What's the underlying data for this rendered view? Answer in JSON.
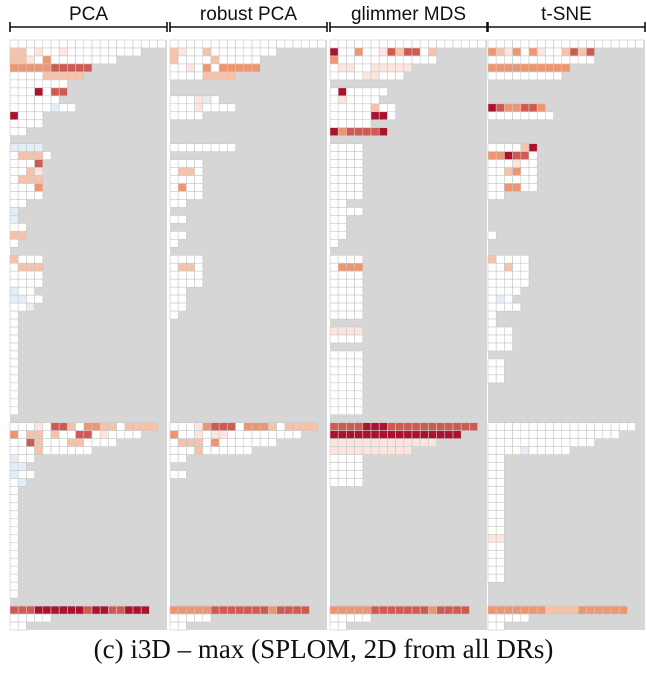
{
  "caption": "(c)  i3D – max (SPLOM, 2D from all DRs)",
  "chart_data": {
    "type": "heatmap",
    "title": "",
    "encoding": "diverging (blue = low, white = neutral, red = high); grey = no cell",
    "colors": {
      "background": "#d6d6d6",
      "neg2": "#c6dcef",
      "neg1": "#e4eef8",
      "zero": "#ffffff",
      "pos1": "#fbe5dc",
      "pos2": "#f6c3aa",
      "pos3": "#f0966e",
      "pos4": "#d05a52",
      "pos5": "#aa1230",
      "grid": "#c9c9c9"
    },
    "panels": [
      {
        "label": "PCA",
        "rows": [
          "0000000000000000000",
          "2201001000000000",
          "2210300000000",
          "3333344444",
          "000022222",
          "0000000",
          "0005044",
          "000000",
          "00000-100",
          "5000",
          "0000",
          "00",
          "",
          "-1-1-1-1",
          "02220",
          "0004",
          "0021",
          "0222",
          "0003",
          "0000",
          "00",
          "-1",
          "-1",
          "00",
          "22",
          "0",
          "",
          "2000",
          "0222",
          "0000",
          "0000",
          "-100",
          "-1-100",
          "00-1",
          "0",
          "0",
          "0",
          "0",
          "0",
          "0",
          "0",
          "0",
          "0",
          "0",
          "0",
          "0",
          "0",
          "",
          "000104420332202222",
          "3022020044010000",
          "0042000220000",
          "0002000000",
          "-100",
          "-1-1",
          "-100",
          "0-1",
          "0",
          "0",
          "0",
          "0",
          "0",
          "0",
          "0",
          "0",
          "0",
          "0",
          "0",
          "0",
          "0",
          "0",
          "",
          "44455555545544555",
          "00000",
          "00"
        ]
      },
      {
        "label": "robust PCA",
        "rows": [
          "0000000000000000000",
          "2100200000000",
          "20000200000",
          "00103033333",
          "00002222",
          "",
          "",
          "0001-10",
          "00010000",
          "0000",
          "",
          "",
          "",
          "00000000",
          "",
          "0000",
          "0220",
          "0000",
          "0300",
          "0000",
          "00",
          "",
          "00",
          "",
          "00",
          "0",
          "",
          "0000",
          "0220",
          "0000",
          "0000",
          "00",
          "00",
          "00",
          "0",
          "",
          "",
          "",
          "",
          "",
          "",
          "",
          "",
          "",
          "",
          "",
          "",
          "",
          "000134440333202222",
          "3001011000000000",
          "0222030000000",
          "0002000000",
          "00",
          "",
          "00",
          "",
          "",
          "",
          "",
          "",
          "",
          "",
          "",
          "",
          "",
          "",
          "",
          "",
          "",
          "",
          "",
          "33333444444434444",
          "00000",
          "00"
        ]
      },
      {
        "label": "glimmer MDS",
        "rows": [
          "0000000000000000000",
          "5003001424402",
          "3000000000000",
          "0110011111",
          "000011000",
          "",
          "0500000",
          "010000",
          "00000200",
          "00000550",
          "00000",
          "5344445",
          "",
          "0000",
          "0000",
          "0000",
          "0000",
          "0000",
          "0000",
          "0000",
          "00",
          "0000",
          "00",
          "00",
          "00",
          "0",
          "",
          "0000",
          "0333",
          "0000",
          "0000",
          "0000",
          "0000",
          "0000",
          "0000",
          "",
          "1111",
          "0000",
          "",
          "0000",
          "0000",
          "0000",
          "0000",
          "0000",
          "0000",
          "0000",
          "0000",
          "",
          "444455544444444444",
          "5555555555555555",
          "1111111111111",
          "1111111111",
          "0000",
          "0000",
          "0000",
          "0000",
          "",
          "",
          "",
          "",
          "",
          "",
          "",
          "",
          "",
          "",
          "",
          "",
          "",
          "",
          "",
          "33333444444434444",
          "00000",
          "00"
        ]
      },
      {
        "label": "t-SNE",
        "rows": [
          "0000000000000000000",
          "3213031002424",
          "0000000000000",
          "3333333333",
          "000000000",
          "",
          "",
          "",
          "5433443",
          "00000000",
          "",
          "",
          "",
          "000025",
          "335440",
          "000100",
          "002300",
          "000000",
          "003300",
          "00",
          "",
          "",
          "",
          "",
          "0",
          "",
          "",
          "20000",
          "00200",
          "00000",
          "00000",
          "0000",
          "0-10",
          "0000",
          "0",
          "0",
          "000",
          "000",
          "000",
          "",
          "00",
          "00",
          "00",
          "",
          "",
          "",
          "",
          "",
          "000000000000000000",
          "0000000000000000",
          "0000000000000",
          "0000-100000",
          "00",
          "00",
          "00",
          "00",
          "00",
          "00",
          "00",
          "00",
          "00",
          "00",
          "11",
          "00",
          "00",
          "00",
          "00",
          "00",
          "",
          "",
          "",
          "33333332222333333",
          "00000",
          "00"
        ]
      }
    ]
  }
}
